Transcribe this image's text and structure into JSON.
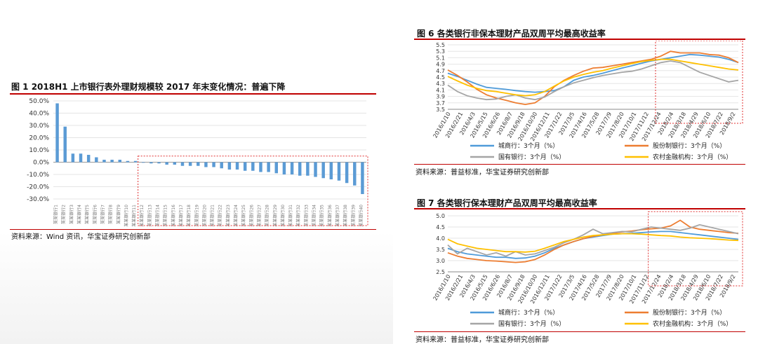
{
  "fig1": {
    "title": "图 1 2018H1 上市银行表外理财规模较 2017 年末变化情况：普遍下降",
    "source": "资料来源：Wind 资讯，华宝证券研究创新部"
  },
  "fig6": {
    "title": "图 6  各类银行非保本理财产品双周平均最高收益率",
    "source": "资料来源：普益标准，华宝证券研究创新部"
  },
  "fig7": {
    "title": "图 7  各类银行保本理财产品双周平均最高收益率",
    "source": "资料来源：普益标准，华宝证券研究创新部"
  },
  "chart_data": [
    {
      "type": "bar",
      "id": "fig1",
      "categories": [
        "某某银行1",
        "某某银行2",
        "某某银行3",
        "某某银行4",
        "某某银行5",
        "某某银行6",
        "某某银行7",
        "某某银行8",
        "某某银行9",
        "某某银行10",
        "某某银行11",
        "某某银行12",
        "某某银行13",
        "某某银行14",
        "某某银行15",
        "某某银行16",
        "某某银行17",
        "某某银行18",
        "某某银行19",
        "某某银行20",
        "某某银行21",
        "某某银行22",
        "某某银行23",
        "某某银行24",
        "某某银行25",
        "某某银行26",
        "某某银行27",
        "某某银行28",
        "某某银行29",
        "某某银行30",
        "某某银行31",
        "某某银行32",
        "某某银行33",
        "某某银行34",
        "某某银行35",
        "某某银行36",
        "某某银行37",
        "某某银行38",
        "某某银行39",
        "某某银行40"
      ],
      "values": [
        48,
        29,
        7,
        7,
        6,
        4,
        2,
        2,
        2,
        1,
        1,
        0,
        -1,
        -1,
        -2,
        -2,
        -3,
        -3,
        -3,
        -4,
        -4,
        -5,
        -6,
        -6,
        -7,
        -7,
        -8,
        -8,
        -9,
        -10,
        -10,
        -11,
        -11,
        -12,
        -13,
        -14,
        -15,
        -17,
        -19,
        -26
      ],
      "yticks": [
        "50.0%",
        "40.0%",
        "30.0%",
        "20.0%",
        "10.0%",
        "0.0%",
        "-10.0%",
        "-20.0%",
        "-30.0%"
      ],
      "ylim": [
        -30,
        50
      ],
      "color": "#5b9bd5",
      "highlight": "#e03030"
    },
    {
      "type": "line",
      "id": "fig6",
      "xticks": [
        "2016/1/10",
        "2016/2/21",
        "2016/4/3",
        "2016/5/15",
        "2016/6/26",
        "2016/8/7",
        "2016/9/18",
        "2016/10/30",
        "2016/12/11",
        "2017/1/22",
        "2017/3/5",
        "2017/4/16",
        "2017/5/28",
        "2017/7/9",
        "2017/8/20",
        "2017/10/1",
        "2017/11/12",
        "2017/12/24",
        "2018/2/4",
        "2018/3/18",
        "2018/4/29",
        "2018/6/10",
        "2018/7/22",
        "2018/9/2"
      ],
      "yticks": [
        "5.5",
        "5.3",
        "5.1",
        "4.9",
        "4.7",
        "4.5",
        "4.3",
        "4.1",
        "3.9",
        "3.7",
        "3.5"
      ],
      "ylim": [
        3.5,
        5.5
      ],
      "series": [
        {
          "name": "城商行：3个月（%）",
          "color": "#4f9bd9",
          "values": [
            4.62,
            4.52,
            4.4,
            4.28,
            4.18,
            4.15,
            4.12,
            4.08,
            4.05,
            4.03,
            4.05,
            4.08,
            4.2,
            4.4,
            4.5,
            4.55,
            4.62,
            4.7,
            4.78,
            4.85,
            4.93,
            5.0,
            5.05,
            5.1,
            5.15,
            5.2,
            5.18,
            5.15,
            5.12,
            5.05,
            4.95
          ]
        },
        {
          "name": "股份制银行：3个月（%）",
          "color": "#ed7d31",
          "values": [
            4.72,
            4.55,
            4.35,
            4.12,
            3.95,
            3.85,
            3.78,
            3.7,
            3.65,
            3.7,
            3.9,
            4.2,
            4.4,
            4.55,
            4.68,
            4.78,
            4.8,
            4.85,
            4.9,
            4.95,
            5.0,
            5.05,
            5.15,
            5.3,
            5.25,
            5.25,
            5.25,
            5.2,
            5.18,
            5.1,
            4.95
          ]
        },
        {
          "name": "国有银行：3个月（%）",
          "color": "#a5a5a5",
          "values": [
            4.25,
            4.05,
            3.92,
            3.85,
            3.8,
            3.82,
            3.9,
            3.95,
            3.85,
            3.8,
            3.88,
            4.05,
            4.2,
            4.32,
            4.4,
            4.48,
            4.55,
            4.6,
            4.65,
            4.68,
            4.75,
            4.85,
            4.95,
            5.0,
            4.95,
            4.8,
            4.65,
            4.55,
            4.45,
            4.35,
            4.4
          ]
        },
        {
          "name": "农村金融机构：3个月（%）",
          "color": "#ffc000",
          "values": [
            4.52,
            4.38,
            4.25,
            4.15,
            4.08,
            4.05,
            4.0,
            3.95,
            3.92,
            3.95,
            4.05,
            4.22,
            4.38,
            4.5,
            4.58,
            4.65,
            4.7,
            4.78,
            4.85,
            4.92,
            4.98,
            5.02,
            5.05,
            5.05,
            5.0,
            4.95,
            4.9,
            4.85,
            4.8,
            4.75,
            4.72
          ]
        }
      ]
    },
    {
      "type": "line",
      "id": "fig7",
      "xticks": [
        "2016/1/10",
        "2016/2/21",
        "2016/4/3",
        "2016/5/15",
        "2016/6/26",
        "2016/8/7",
        "2016/9/18",
        "2016/10/30",
        "2016/12/11",
        "2017/1/22",
        "2017/3/5",
        "2017/4/16",
        "2017/5/28",
        "2017/7/9",
        "2017/8/20",
        "2017/10/1",
        "2017/11/12",
        "2017/12/24",
        "2018/2/4",
        "2018/3/18",
        "2018/4/29",
        "2018/6/10",
        "2018/7/22",
        "2018/9/2"
      ],
      "yticks": [
        "5.0",
        "4.5",
        "4.0",
        "3.5",
        "3.0",
        "2.5"
      ],
      "ylim": [
        2.5,
        5.0
      ],
      "series": [
        {
          "name": "城商行：3个月（%）",
          "color": "#4f9bd9",
          "values": [
            3.55,
            3.4,
            3.3,
            3.25,
            3.2,
            3.15,
            3.15,
            3.1,
            3.12,
            3.2,
            3.35,
            3.55,
            3.7,
            3.85,
            3.98,
            4.05,
            4.12,
            4.18,
            4.2,
            4.22,
            4.25,
            4.28,
            4.3,
            4.3,
            4.25,
            4.2,
            4.15,
            4.1,
            4.05,
            4.0,
            3.95
          ]
        },
        {
          "name": "股份制银行：3个月（%）",
          "color": "#ed7d31",
          "values": [
            3.35,
            3.2,
            3.1,
            3.05,
            3.0,
            2.98,
            2.95,
            2.92,
            2.95,
            3.05,
            3.25,
            3.5,
            3.7,
            3.85,
            3.98,
            4.08,
            4.15,
            4.22,
            4.28,
            4.32,
            4.38,
            4.42,
            4.45,
            4.55,
            4.8,
            4.5,
            4.4,
            4.35,
            4.3,
            4.25,
            4.22
          ]
        },
        {
          "name": "国有银行：3个月（%）",
          "color": "#a5a5a5",
          "values": [
            3.7,
            3.3,
            3.55,
            3.4,
            3.25,
            3.35,
            3.2,
            3.4,
            3.25,
            3.3,
            3.45,
            3.6,
            3.8,
            3.95,
            4.15,
            4.4,
            4.2,
            4.25,
            4.3,
            4.28,
            4.4,
            4.5,
            4.45,
            4.4,
            4.35,
            4.45,
            4.6,
            4.5,
            4.4,
            4.3,
            4.2
          ]
        },
        {
          "name": "农村金融机构：3个月（%）",
          "color": "#ffc000",
          "values": [
            3.95,
            3.75,
            3.65,
            3.55,
            3.5,
            3.45,
            3.4,
            3.4,
            3.38,
            3.42,
            3.55,
            3.7,
            3.85,
            3.95,
            4.05,
            4.12,
            4.15,
            4.18,
            4.2,
            4.2,
            4.18,
            4.15,
            4.12,
            4.1,
            4.05,
            4.02,
            4.0,
            3.98,
            3.95,
            3.92,
            3.9
          ]
        }
      ]
    }
  ]
}
